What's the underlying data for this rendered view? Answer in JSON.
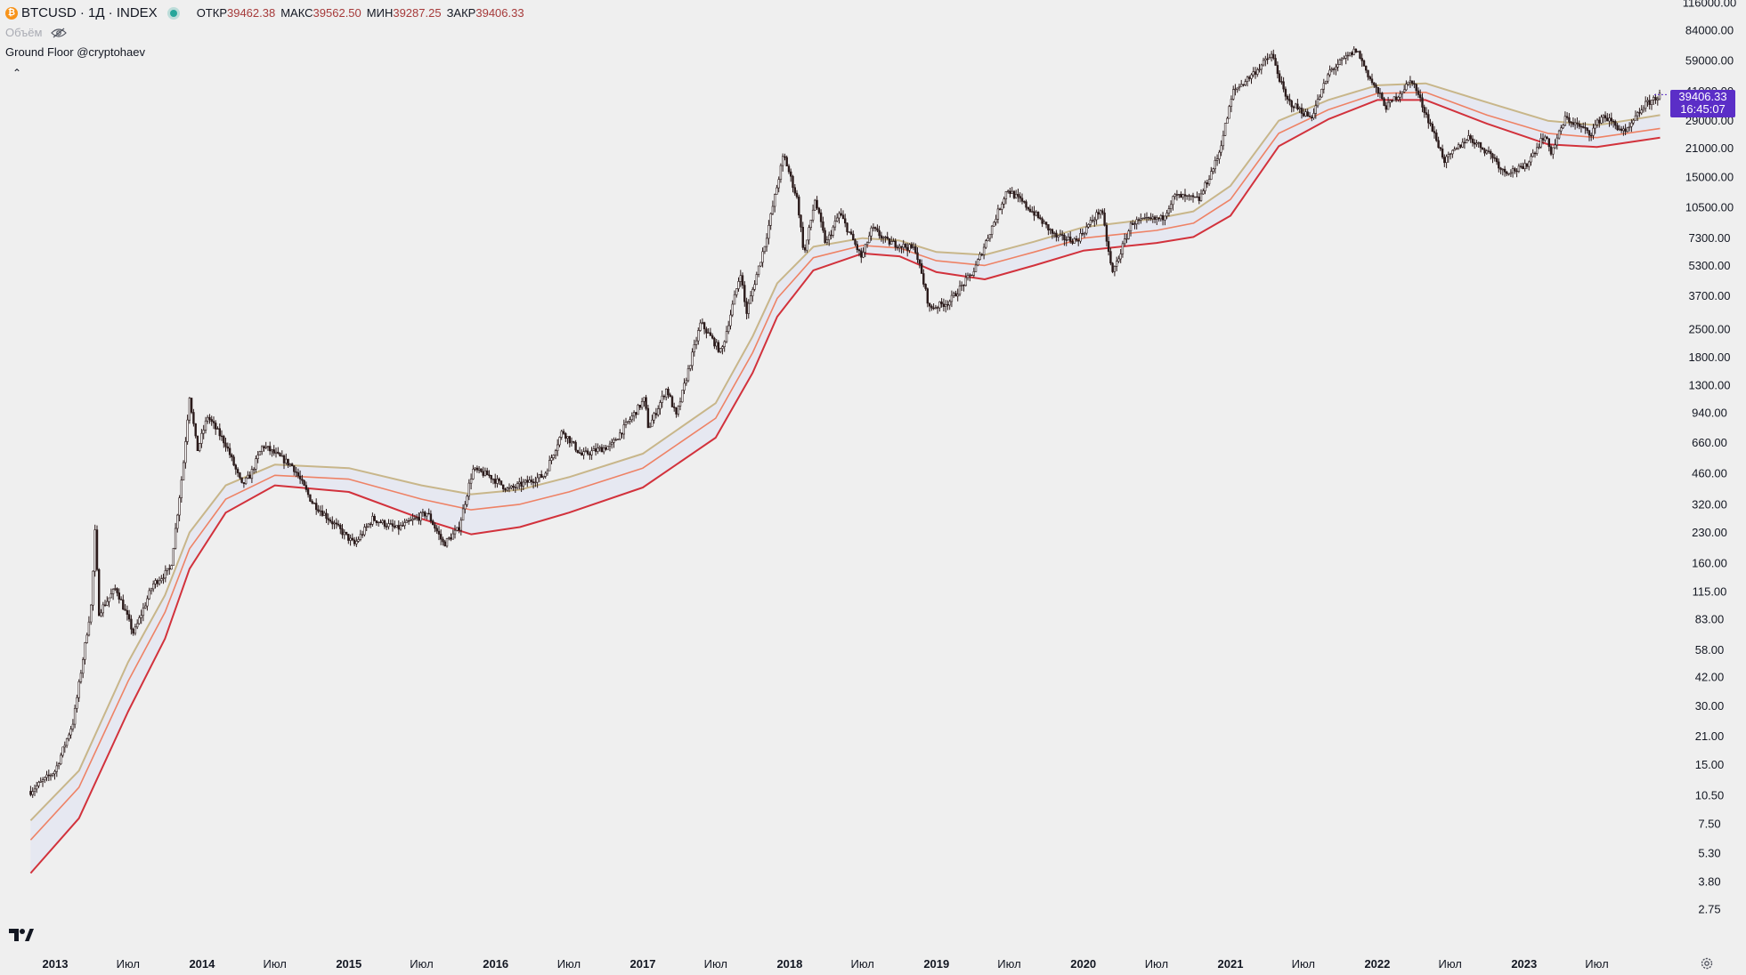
{
  "header": {
    "coin_icon": "bitcoin-icon",
    "coin_glyph": "₿",
    "symbol": "BTCUSD · 1Д · INDEX",
    "ohlc": [
      {
        "label": "ОТКР",
        "value": "39462.38"
      },
      {
        "label": "МАКС",
        "value": "39562.50"
      },
      {
        "label": "МИН",
        "value": "39287.25"
      },
      {
        "label": "ЗАКР",
        "value": "39406.33"
      }
    ],
    "volume_label": "Объём",
    "indicator_name": "Ground Floor @cryptohaev",
    "collapse_glyph": "⌃"
  },
  "price_badge": {
    "price": "39406.33",
    "countdown": "16:45:07"
  },
  "colors": {
    "background": "#efefef",
    "candle": "#2a1a1a",
    "band_upper": "#c8b68a",
    "band_middle": "#ee8266",
    "band_lower": "#d2323c",
    "band_fill": "#e2e6f2",
    "badge": "#5b2ec7"
  },
  "chart_data": {
    "type": "line",
    "scale": "log",
    "y_ticks": [
      "116000.00",
      "84000.00",
      "59000.00",
      "41000.00",
      "29000.00",
      "21000.00",
      "15000.00",
      "10500.00",
      "7300.00",
      "5300.00",
      "3700.00",
      "2500.00",
      "1800.00",
      "1300.00",
      "940.00",
      "660.00",
      "460.00",
      "320.00",
      "230.00",
      "160.00",
      "115.00",
      "83.00",
      "58.00",
      "42.00",
      "30.00",
      "21.00",
      "15.00",
      "10.50",
      "7.50",
      "5.30",
      "3.80",
      "2.75"
    ],
    "x_ticks": [
      {
        "date": "2013-01-01",
        "label": "2013",
        "bold": true
      },
      {
        "date": "2013-07-01",
        "label": "Июл",
        "bold": false
      },
      {
        "date": "2014-01-01",
        "label": "2014",
        "bold": true
      },
      {
        "date": "2014-07-01",
        "label": "Июл",
        "bold": false
      },
      {
        "date": "2015-01-01",
        "label": "2015",
        "bold": true
      },
      {
        "date": "2015-07-01",
        "label": "Июл",
        "bold": false
      },
      {
        "date": "2016-01-01",
        "label": "2016",
        "bold": true
      },
      {
        "date": "2016-07-01",
        "label": "Июл",
        "bold": false
      },
      {
        "date": "2017-01-01",
        "label": "2017",
        "bold": true
      },
      {
        "date": "2017-07-01",
        "label": "Июл",
        "bold": false
      },
      {
        "date": "2018-01-01",
        "label": "2018",
        "bold": true
      },
      {
        "date": "2018-07-01",
        "label": "Июл",
        "bold": false
      },
      {
        "date": "2019-01-01",
        "label": "2019",
        "bold": true
      },
      {
        "date": "2019-07-01",
        "label": "Июл",
        "bold": false
      },
      {
        "date": "2020-01-01",
        "label": "2020",
        "bold": true
      },
      {
        "date": "2020-07-01",
        "label": "Июл",
        "bold": false
      },
      {
        "date": "2021-01-01",
        "label": "2021",
        "bold": true
      },
      {
        "date": "2021-07-01",
        "label": "Июл",
        "bold": false
      },
      {
        "date": "2022-01-01",
        "label": "2022",
        "bold": true
      },
      {
        "date": "2022-07-01",
        "label": "Июл",
        "bold": false
      },
      {
        "date": "2023-01-01",
        "label": "2023",
        "bold": true
      },
      {
        "date": "2023-07-01",
        "label": "Июл",
        "bold": false
      }
    ],
    "series": [
      {
        "key": "price",
        "points": [
          [
            "2012-11-01",
            11
          ],
          [
            "2013-01-01",
            14
          ],
          [
            "2013-02-15",
            25
          ],
          [
            "2013-04-01",
            100
          ],
          [
            "2013-04-10",
            230
          ],
          [
            "2013-04-20",
            90
          ],
          [
            "2013-06-01",
            120
          ],
          [
            "2013-07-15",
            70
          ],
          [
            "2013-09-01",
            125
          ],
          [
            "2013-10-15",
            150
          ],
          [
            "2013-11-15",
            500
          ],
          [
            "2013-12-01",
            1150
          ],
          [
            "2013-12-20",
            600
          ],
          [
            "2014-01-15",
            900
          ],
          [
            "2014-03-01",
            650
          ],
          [
            "2014-04-10",
            400
          ],
          [
            "2014-05-01",
            450
          ],
          [
            "2014-06-01",
            640
          ],
          [
            "2014-08-15",
            500
          ],
          [
            "2014-10-01",
            330
          ],
          [
            "2015-01-15",
            200
          ],
          [
            "2015-03-01",
            270
          ],
          [
            "2015-05-01",
            240
          ],
          [
            "2015-07-15",
            290
          ],
          [
            "2015-08-25",
            200
          ],
          [
            "2015-10-01",
            240
          ],
          [
            "2015-11-05",
            480
          ],
          [
            "2015-12-15",
            450
          ],
          [
            "2016-02-01",
            380
          ],
          [
            "2016-05-01",
            450
          ],
          [
            "2016-06-15",
            760
          ],
          [
            "2016-08-01",
            570
          ],
          [
            "2016-10-15",
            640
          ],
          [
            "2017-01-05",
            1100
          ],
          [
            "2017-01-15",
            780
          ],
          [
            "2017-03-01",
            1250
          ],
          [
            "2017-03-25",
            900
          ],
          [
            "2017-05-25",
            2700
          ],
          [
            "2017-07-15",
            1900
          ],
          [
            "2017-09-01",
            4900
          ],
          [
            "2017-09-15",
            3000
          ],
          [
            "2017-11-01",
            6900
          ],
          [
            "2017-12-17",
            19500
          ],
          [
            "2018-01-20",
            11500
          ],
          [
            "2018-02-06",
            6000
          ],
          [
            "2018-03-05",
            11500
          ],
          [
            "2018-04-01",
            6800
          ],
          [
            "2018-05-05",
            9800
          ],
          [
            "2018-06-29",
            5800
          ],
          [
            "2018-07-25",
            8200
          ],
          [
            "2018-09-01",
            7000
          ],
          [
            "2018-11-10",
            6400
          ],
          [
            "2018-12-15",
            3200
          ],
          [
            "2019-02-01",
            3450
          ],
          [
            "2019-04-05",
            5000
          ],
          [
            "2019-06-26",
            13000
          ],
          [
            "2019-09-01",
            9800
          ],
          [
            "2019-10-25",
            7400
          ],
          [
            "2019-12-15",
            7100
          ],
          [
            "2020-02-15",
            10300
          ],
          [
            "2020-03-13",
            4800
          ],
          [
            "2020-05-01",
            8800
          ],
          [
            "2020-07-15",
            9200
          ],
          [
            "2020-08-15",
            12000
          ],
          [
            "2020-10-15",
            11500
          ],
          [
            "2020-12-01",
            19000
          ],
          [
            "2021-01-08",
            41000
          ],
          [
            "2021-02-15",
            48000
          ],
          [
            "2021-04-14",
            63000
          ],
          [
            "2021-05-20",
            37000
          ],
          [
            "2021-07-20",
            30000
          ],
          [
            "2021-09-05",
            52000
          ],
          [
            "2021-11-10",
            67000
          ],
          [
            "2021-12-15",
            47000
          ],
          [
            "2022-01-24",
            34000
          ],
          [
            "2022-03-28",
            47000
          ],
          [
            "2022-05-12",
            28000
          ],
          [
            "2022-06-18",
            18000
          ],
          [
            "2022-08-15",
            24000
          ],
          [
            "2022-10-15",
            19200
          ],
          [
            "2022-11-10",
            16000
          ],
          [
            "2022-12-31",
            16500
          ],
          [
            "2023-02-20",
            24500
          ],
          [
            "2023-03-10",
            20000
          ],
          [
            "2023-04-14",
            30000
          ],
          [
            "2023-06-15",
            25000
          ],
          [
            "2023-07-15",
            31000
          ],
          [
            "2023-09-11",
            25000
          ],
          [
            "2023-10-25",
            34500
          ],
          [
            "2023-12-05",
            39400
          ]
        ]
      },
      {
        "key": "band_upper",
        "points": [
          [
            "2012-11-01",
            7.8
          ],
          [
            "2013-03-01",
            14
          ],
          [
            "2013-07-01",
            50
          ],
          [
            "2013-10-01",
            110
          ],
          [
            "2013-12-01",
            230
          ],
          [
            "2014-03-01",
            400
          ],
          [
            "2014-07-01",
            510
          ],
          [
            "2015-01-01",
            490
          ],
          [
            "2015-07-01",
            400
          ],
          [
            "2015-11-01",
            360
          ],
          [
            "2016-03-01",
            380
          ],
          [
            "2016-07-01",
            440
          ],
          [
            "2017-01-01",
            580
          ],
          [
            "2017-07-01",
            1050
          ],
          [
            "2017-10-01",
            2300
          ],
          [
            "2017-12-01",
            4300
          ],
          [
            "2018-03-01",
            6600
          ],
          [
            "2018-07-01",
            7300
          ],
          [
            "2018-10-01",
            7100
          ],
          [
            "2019-01-01",
            6200
          ],
          [
            "2019-05-01",
            6000
          ],
          [
            "2019-09-01",
            7000
          ],
          [
            "2020-01-01",
            8300
          ],
          [
            "2020-07-01",
            9200
          ],
          [
            "2020-10-01",
            10000
          ],
          [
            "2021-01-01",
            13500
          ],
          [
            "2021-05-01",
            29000
          ],
          [
            "2021-09-01",
            37000
          ],
          [
            "2022-01-01",
            44000
          ],
          [
            "2022-05-01",
            45000
          ],
          [
            "2022-10-01",
            36000
          ],
          [
            "2023-03-01",
            29000
          ],
          [
            "2023-07-01",
            27500
          ],
          [
            "2023-12-05",
            31000
          ]
        ]
      },
      {
        "key": "band_middle",
        "points": [
          [
            "2012-11-01",
            6.2
          ],
          [
            "2013-03-01",
            11.5
          ],
          [
            "2013-07-01",
            40
          ],
          [
            "2013-10-01",
            90
          ],
          [
            "2013-12-01",
            190
          ],
          [
            "2014-03-01",
            340
          ],
          [
            "2014-07-01",
            450
          ],
          [
            "2015-01-01",
            430
          ],
          [
            "2015-07-01",
            340
          ],
          [
            "2015-11-01",
            300
          ],
          [
            "2016-03-01",
            320
          ],
          [
            "2016-07-01",
            370
          ],
          [
            "2017-01-01",
            490
          ],
          [
            "2017-07-01",
            880
          ],
          [
            "2017-10-01",
            1900
          ],
          [
            "2017-12-01",
            3600
          ],
          [
            "2018-03-01",
            5800
          ],
          [
            "2018-07-01",
            6700
          ],
          [
            "2018-10-01",
            6500
          ],
          [
            "2019-01-01",
            5600
          ],
          [
            "2019-05-01",
            5300
          ],
          [
            "2019-09-01",
            6200
          ],
          [
            "2020-01-01",
            7300
          ],
          [
            "2020-07-01",
            8000
          ],
          [
            "2020-10-01",
            8700
          ],
          [
            "2021-01-01",
            11500
          ],
          [
            "2021-05-01",
            25000
          ],
          [
            "2021-09-01",
            33000
          ],
          [
            "2022-01-01",
            40000
          ],
          [
            "2022-05-01",
            40500
          ],
          [
            "2022-10-01",
            31000
          ],
          [
            "2023-03-01",
            25000
          ],
          [
            "2023-07-01",
            23800
          ],
          [
            "2023-12-05",
            26500
          ]
        ]
      },
      {
        "key": "band_lower",
        "points": [
          [
            "2012-11-01",
            4.2
          ],
          [
            "2013-03-01",
            8
          ],
          [
            "2013-07-01",
            28
          ],
          [
            "2013-10-01",
            66
          ],
          [
            "2013-12-01",
            150
          ],
          [
            "2014-03-01",
            290
          ],
          [
            "2014-07-01",
            400
          ],
          [
            "2015-01-01",
            370
          ],
          [
            "2015-07-01",
            270
          ],
          [
            "2015-11-01",
            225
          ],
          [
            "2016-03-01",
            245
          ],
          [
            "2016-07-01",
            290
          ],
          [
            "2017-01-01",
            390
          ],
          [
            "2017-07-01",
            700
          ],
          [
            "2017-10-01",
            1500
          ],
          [
            "2017-12-01",
            2900
          ],
          [
            "2018-03-01",
            5000
          ],
          [
            "2018-07-01",
            6100
          ],
          [
            "2018-10-01",
            5900
          ],
          [
            "2019-01-01",
            4900
          ],
          [
            "2019-05-01",
            4500
          ],
          [
            "2019-09-01",
            5300
          ],
          [
            "2020-01-01",
            6300
          ],
          [
            "2020-07-01",
            6900
          ],
          [
            "2020-10-01",
            7400
          ],
          [
            "2021-01-01",
            9500
          ],
          [
            "2021-05-01",
            21500
          ],
          [
            "2021-09-01",
            29500
          ],
          [
            "2022-01-01",
            37000
          ],
          [
            "2022-05-01",
            37000
          ],
          [
            "2022-10-01",
            28000
          ],
          [
            "2023-03-01",
            22000
          ],
          [
            "2023-07-01",
            21300
          ],
          [
            "2023-12-05",
            23800
          ]
        ]
      }
    ]
  }
}
